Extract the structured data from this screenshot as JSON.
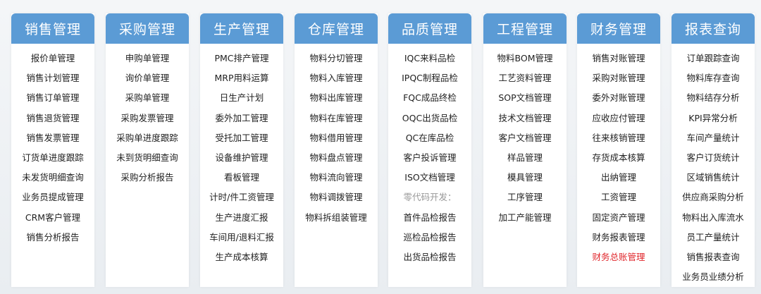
{
  "colors": {
    "header": "#5b9bd5",
    "highlight": "#e0262b",
    "note": "#999999"
  },
  "columns": [
    {
      "title": "销售管理",
      "items": [
        {
          "label": "报价单管理"
        },
        {
          "label": "销售计划管理"
        },
        {
          "label": "销售订单管理"
        },
        {
          "label": "销售退货管理"
        },
        {
          "label": "销售发票管理"
        },
        {
          "label": "订货单进度跟踪"
        },
        {
          "label": "未发货明细查询"
        },
        {
          "label": "业务员提成管理"
        },
        {
          "label": "CRM客户管理"
        },
        {
          "label": "销售分析报告"
        }
      ]
    },
    {
      "title": "采购管理",
      "items": [
        {
          "label": "申购单管理"
        },
        {
          "label": "询价单管理"
        },
        {
          "label": "采购单管理"
        },
        {
          "label": "采购发票管理"
        },
        {
          "label": "采购单进度跟踪"
        },
        {
          "label": "未到货明细查询"
        },
        {
          "label": "采购分析报告"
        }
      ]
    },
    {
      "title": "生产管理",
      "items": [
        {
          "label": "PMC排产管理"
        },
        {
          "label": "MRP用料运算"
        },
        {
          "label": "日生产计划"
        },
        {
          "label": "委外加工管理"
        },
        {
          "label": "受托加工管理"
        },
        {
          "label": "设备维护管理"
        },
        {
          "label": "看板管理"
        },
        {
          "label": "计时/件工资管理"
        },
        {
          "label": "生产进度汇报"
        },
        {
          "label": "车间用/退料汇报"
        },
        {
          "label": "生产成本核算"
        }
      ]
    },
    {
      "title": "仓库管理",
      "items": [
        {
          "label": "物料分切管理"
        },
        {
          "label": "物料入库管理"
        },
        {
          "label": "物料出库管理"
        },
        {
          "label": "物料在库管理"
        },
        {
          "label": "物料借用管理"
        },
        {
          "label": "物料盘点管理"
        },
        {
          "label": "物料流向管理"
        },
        {
          "label": "物料调拨管理"
        },
        {
          "label": "物料拆组装管理"
        }
      ]
    },
    {
      "title": "品质管理",
      "items": [
        {
          "label": "IQC来料品检"
        },
        {
          "label": "IPQC制程品检"
        },
        {
          "label": "FQC成品终检"
        },
        {
          "label": "OQC出货品检"
        },
        {
          "label": "QC在库品检"
        },
        {
          "label": "客户投诉管理"
        },
        {
          "label": "ISO文档管理"
        },
        {
          "label": "零代码开发：",
          "style": "note"
        },
        {
          "label": "首件品检报告"
        },
        {
          "label": "巡检品检报告"
        },
        {
          "label": "出货品检报告"
        }
      ]
    },
    {
      "title": "工程管理",
      "items": [
        {
          "label": "物料BOM管理"
        },
        {
          "label": "工艺资料管理"
        },
        {
          "label": "SOP文档管理"
        },
        {
          "label": "技术文档管理"
        },
        {
          "label": "客户文档管理"
        },
        {
          "label": "样品管理"
        },
        {
          "label": "模具管理"
        },
        {
          "label": "工序管理"
        },
        {
          "label": "加工产能管理"
        }
      ]
    },
    {
      "title": "财务管理",
      "items": [
        {
          "label": "销售对账管理"
        },
        {
          "label": "采购对账管理"
        },
        {
          "label": "委外对账管理"
        },
        {
          "label": "应收应付管理"
        },
        {
          "label": "往来核销管理"
        },
        {
          "label": "存货成本核算"
        },
        {
          "label": "出纳管理"
        },
        {
          "label": "工资管理"
        },
        {
          "label": "固定资产管理"
        },
        {
          "label": "财务报表管理"
        },
        {
          "label": "财务总账管理",
          "style": "highlight"
        }
      ]
    },
    {
      "title": "报表查询",
      "items": [
        {
          "label": "订单跟踪查询"
        },
        {
          "label": "物料库存查询"
        },
        {
          "label": "物料结存分析"
        },
        {
          "label": "KPI异常分析"
        },
        {
          "label": "车间产量统计"
        },
        {
          "label": "客户订货统计"
        },
        {
          "label": "区域销售统计"
        },
        {
          "label": "供应商采购分析"
        },
        {
          "label": "物料出入库流水"
        },
        {
          "label": "员工产量统计"
        },
        {
          "label": "销售报表查询"
        },
        {
          "label": "业务员业绩分析"
        }
      ]
    }
  ]
}
